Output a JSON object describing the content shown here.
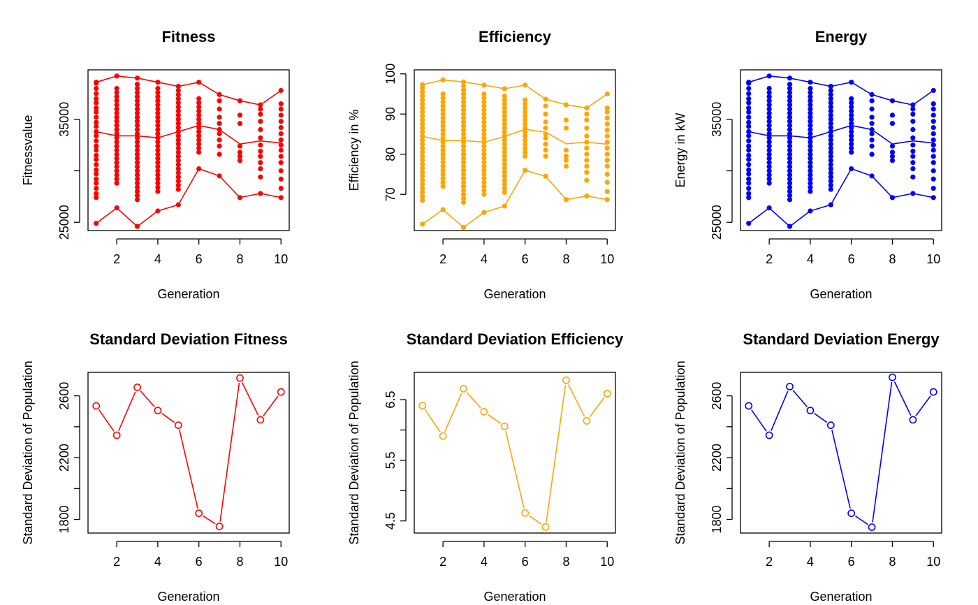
{
  "chart_data": [
    {
      "type": "scatter",
      "title": "Fitness",
      "xlabel": "Generation",
      "ylabel": "Fitnessvalue",
      "color": "#ff0000",
      "xlim": [
        0.6,
        10.4
      ],
      "ylim": [
        24200,
        39800
      ],
      "xticks": [
        2,
        4,
        6,
        8,
        10
      ],
      "yticks": [
        25000,
        30000,
        35000
      ],
      "ytick_labels": [
        "25000",
        "",
        "35000"
      ],
      "lines": {
        "max": [
          38600,
          39200,
          39000,
          38600,
          38200,
          38600,
          37400,
          36800,
          36400,
          37800
        ],
        "mean": [
          33800,
          33400,
          33400,
          33200,
          33800,
          34400,
          34000,
          32600,
          32900,
          32700
        ],
        "min": [
          24900,
          26400,
          24600,
          26100,
          26700,
          30200,
          29500,
          27400,
          27800,
          27400
        ]
      },
      "points": [
        {
          "x": 1,
          "y": [
            27400,
            27800,
            28300,
            28800,
            29200,
            29700,
            30100,
            30600,
            31100,
            31500,
            32000,
            32400,
            32900,
            33400,
            33800,
            34300,
            34700,
            35200,
            35700,
            36100,
            36600,
            37000,
            37500,
            38000,
            38500
          ]
        },
        {
          "x": 2,
          "y": [
            28800,
            29200,
            29600,
            30000,
            30400,
            30800,
            31200,
            31600,
            32000,
            32400,
            32800,
            33200,
            33600,
            34000,
            34400,
            34800,
            35200,
            35600,
            36000,
            36400,
            36800,
            37200,
            37600,
            38000
          ]
        },
        {
          "x": 3,
          "y": [
            27200,
            27600,
            28000,
            28400,
            28800,
            29200,
            29600,
            30000,
            30400,
            30800,
            31200,
            31600,
            32000,
            32400,
            32800,
            33200,
            33600,
            34000,
            34400,
            34800,
            35200,
            35600,
            36000,
            36400,
            36800,
            37200,
            37600,
            38000,
            38400
          ]
        },
        {
          "x": 4,
          "y": [
            28000,
            28400,
            28800,
            29200,
            29600,
            30000,
            30400,
            30800,
            31200,
            31600,
            32000,
            32400,
            32800,
            33200,
            33600,
            34000,
            34400,
            34800,
            35200,
            35600,
            36000,
            36400,
            36800,
            37200,
            37600,
            38000
          ]
        },
        {
          "x": 5,
          "y": [
            28200,
            28600,
            29000,
            29400,
            29800,
            30200,
            30600,
            31000,
            31400,
            31800,
            32200,
            32600,
            33000,
            33400,
            33800,
            34200,
            34600,
            35000,
            35400,
            35800,
            36200,
            36600,
            37000,
            37400,
            37800
          ]
        },
        {
          "x": 6,
          "y": [
            31800,
            32200,
            32600,
            33000,
            33400,
            33800,
            34200,
            34600,
            35000,
            35400,
            35800,
            36200,
            36600,
            37000
          ]
        },
        {
          "x": 7,
          "y": [
            31600,
            32400,
            33000,
            33600,
            34000,
            34600,
            35200,
            36000,
            36800
          ]
        },
        {
          "x": 8,
          "y": [
            31000,
            31400,
            31800,
            32400,
            34600,
            35400
          ]
        },
        {
          "x": 9,
          "y": [
            29400,
            30200,
            30800,
            31400,
            31900,
            32500,
            33200,
            34000,
            34800,
            35500,
            36000
          ]
        },
        {
          "x": 10,
          "y": [
            28300,
            29200,
            30000,
            30800,
            31400,
            32000,
            32500,
            33000,
            33600,
            34200,
            34800,
            35400,
            36000,
            36500
          ]
        }
      ]
    },
    {
      "type": "scatter",
      "title": "Efficiency",
      "xlabel": "Generation",
      "ylabel": "Efficiency in %",
      "color": "#ffa500",
      "xlim": [
        0.6,
        10.4
      ],
      "ylim": [
        61,
        101
      ],
      "xticks": [
        2,
        4,
        6,
        8,
        10
      ],
      "yticks": [
        70,
        80,
        90,
        100
      ],
      "ytick_labels": [
        "70",
        "80",
        "90",
        "100"
      ],
      "lines": {
        "max": [
          97.3,
          98.5,
          98.0,
          97.2,
          96.3,
          97.2,
          93.7,
          92.3,
          91.5,
          95.0
        ],
        "mean": [
          84.4,
          83.4,
          83.4,
          83.0,
          84.4,
          86.2,
          85.5,
          82.6,
          83.0,
          82.5
        ],
        "min": [
          62.6,
          66.2,
          61.8,
          65.5,
          67.1,
          76.0,
          74.5,
          68.7,
          69.6,
          68.7
        ]
      },
      "points": [
        {
          "x": 1,
          "y": [
            68.5,
            69.5,
            70.5,
            71.5,
            72.5,
            73.5,
            74.5,
            75.5,
            76.5,
            77.5,
            78.5,
            79.5,
            80.5,
            81.5,
            82.5,
            83.5,
            84.5,
            85.5,
            86.5,
            87.5,
            88.5,
            89.5,
            90.5,
            91.5,
            92.5,
            93.5,
            94.5,
            95.5,
            96.5
          ]
        },
        {
          "x": 2,
          "y": [
            72.0,
            73.0,
            74.0,
            75.0,
            76.0,
            77.0,
            78.0,
            79.0,
            80.0,
            81.0,
            82.0,
            83.0,
            84.0,
            85.0,
            86.0,
            87.0,
            88.0,
            89.0,
            90.0,
            91.0,
            92.0,
            93.0,
            94.0,
            95.0
          ]
        },
        {
          "x": 3,
          "y": [
            68.0,
            69.0,
            70.0,
            71.0,
            72.0,
            73.0,
            74.0,
            75.0,
            76.0,
            77.0,
            78.0,
            79.0,
            80.0,
            81.0,
            82.0,
            83.0,
            84.0,
            85.0,
            86.0,
            87.0,
            88.0,
            89.0,
            90.0,
            91.0,
            92.0,
            93.0,
            94.0,
            95.0,
            96.0,
            97.0
          ]
        },
        {
          "x": 4,
          "y": [
            70.0,
            71.0,
            72.0,
            73.0,
            74.0,
            75.0,
            76.0,
            77.0,
            78.0,
            79.0,
            80.0,
            81.0,
            82.0,
            83.0,
            84.0,
            85.0,
            86.0,
            87.0,
            88.0,
            89.0,
            90.0,
            91.0,
            92.0,
            93.0,
            94.0,
            95.0
          ]
        },
        {
          "x": 5,
          "y": [
            70.5,
            71.5,
            72.5,
            73.5,
            74.5,
            75.5,
            76.5,
            77.5,
            78.5,
            79.5,
            80.5,
            81.5,
            82.5,
            83.5,
            84.5,
            85.5,
            86.5,
            87.5,
            88.5,
            89.5,
            90.5,
            91.5,
            92.5,
            93.5,
            94.5
          ]
        },
        {
          "x": 6,
          "y": [
            79.5,
            80.5,
            81.5,
            82.5,
            83.5,
            84.5,
            85.5,
            86.5,
            87.5,
            88.5,
            89.5,
            90.5,
            91.5,
            92.5,
            93.5
          ]
        },
        {
          "x": 7,
          "y": [
            79.5,
            81.0,
            82.5,
            84.0,
            85.0,
            86.5,
            88.0,
            90.0,
            92.0
          ]
        },
        {
          "x": 8,
          "y": [
            77.0,
            78.5,
            79.5,
            81.0,
            86.5,
            88.5
          ]
        },
        {
          "x": 9,
          "y": [
            73.5,
            75.5,
            77.0,
            78.5,
            80.0,
            81.5,
            83.0,
            84.5,
            86.5,
            88.5,
            90.0
          ]
        },
        {
          "x": 10,
          "y": [
            70.7,
            73.0,
            75.0,
            77.0,
            78.5,
            80.0,
            81.5,
            83.0,
            84.5,
            86.0,
            87.5,
            89.0,
            90.5,
            91.5
          ]
        }
      ]
    },
    {
      "type": "scatter",
      "title": "Energy",
      "xlabel": "Generation",
      "ylabel": "Energy in kW",
      "color": "#0000ff",
      "xlim": [
        0.6,
        10.4
      ],
      "ylim": [
        24200,
        39800
      ],
      "xticks": [
        2,
        4,
        6,
        8,
        10
      ],
      "yticks": [
        25000,
        30000,
        35000
      ],
      "ytick_labels": [
        "25000",
        "",
        "35000"
      ],
      "lines": {
        "max": [
          38600,
          39200,
          39000,
          38600,
          38200,
          38600,
          37400,
          36800,
          36400,
          37800
        ],
        "mean": [
          33800,
          33400,
          33400,
          33200,
          33800,
          34400,
          34000,
          32600,
          32900,
          32700
        ],
        "min": [
          24900,
          26400,
          24600,
          26100,
          26700,
          30200,
          29500,
          27400,
          27800,
          27400
        ]
      },
      "points": [
        {
          "x": 1,
          "y": [
            27400,
            27800,
            28300,
            28800,
            29200,
            29700,
            30100,
            30600,
            31100,
            31500,
            32000,
            32400,
            32900,
            33400,
            33800,
            34300,
            34700,
            35200,
            35700,
            36100,
            36600,
            37000,
            37500,
            38000,
            38500
          ]
        },
        {
          "x": 2,
          "y": [
            28800,
            29200,
            29600,
            30000,
            30400,
            30800,
            31200,
            31600,
            32000,
            32400,
            32800,
            33200,
            33600,
            34000,
            34400,
            34800,
            35200,
            35600,
            36000,
            36400,
            36800,
            37200,
            37600,
            38000
          ]
        },
        {
          "x": 3,
          "y": [
            27200,
            27600,
            28000,
            28400,
            28800,
            29200,
            29600,
            30000,
            30400,
            30800,
            31200,
            31600,
            32000,
            32400,
            32800,
            33200,
            33600,
            34000,
            34400,
            34800,
            35200,
            35600,
            36000,
            36400,
            36800,
            37200,
            37600,
            38000,
            38400
          ]
        },
        {
          "x": 4,
          "y": [
            28000,
            28400,
            28800,
            29200,
            29600,
            30000,
            30400,
            30800,
            31200,
            31600,
            32000,
            32400,
            32800,
            33200,
            33600,
            34000,
            34400,
            34800,
            35200,
            35600,
            36000,
            36400,
            36800,
            37200,
            37600,
            38000
          ]
        },
        {
          "x": 5,
          "y": [
            28200,
            28600,
            29000,
            29400,
            29800,
            30200,
            30600,
            31000,
            31400,
            31800,
            32200,
            32600,
            33000,
            33400,
            33800,
            34200,
            34600,
            35000,
            35400,
            35800,
            36200,
            36600,
            37000,
            37400,
            37800
          ]
        },
        {
          "x": 6,
          "y": [
            31800,
            32200,
            32600,
            33000,
            33400,
            33800,
            34200,
            34600,
            35000,
            35400,
            35800,
            36200,
            36600,
            37000
          ]
        },
        {
          "x": 7,
          "y": [
            31600,
            32400,
            33000,
            33600,
            34000,
            34600,
            35200,
            36000,
            36800
          ]
        },
        {
          "x": 8,
          "y": [
            31000,
            31400,
            31800,
            32400,
            34600,
            35400
          ]
        },
        {
          "x": 9,
          "y": [
            29400,
            30200,
            30800,
            31400,
            31900,
            32500,
            33200,
            34000,
            34800,
            35500,
            36000
          ]
        },
        {
          "x": 10,
          "y": [
            28300,
            29200,
            30000,
            30800,
            31400,
            32000,
            32500,
            33000,
            33600,
            34200,
            34800,
            35400,
            36000,
            36500
          ]
        }
      ]
    },
    {
      "type": "line",
      "title": "Standard Deviation Fitness",
      "xlabel": "Generation",
      "ylabel": "Standard Deviation of Population",
      "color": "#ff0000",
      "xlim": [
        0.6,
        10.4
      ],
      "ylim": [
        1712,
        2752
      ],
      "xticks": [
        2,
        4,
        6,
        8,
        10
      ],
      "yticks": [
        1800,
        2000,
        2200,
        2400,
        2600
      ],
      "ytick_labels": [
        "1800",
        "",
        "2200",
        "",
        "2600"
      ],
      "x": [
        1,
        2,
        3,
        4,
        5,
        6,
        7,
        8,
        9,
        10
      ],
      "y": [
        2535,
        2345,
        2655,
        2505,
        2410,
        1840,
        1755,
        2715,
        2445,
        2625
      ]
    },
    {
      "type": "line",
      "title": "Standard Deviation Efficiency",
      "xlabel": "Generation",
      "ylabel": "Standard Deviation of Population",
      "color": "#ffa500",
      "xlim": [
        0.6,
        10.4
      ],
      "ylim": [
        4.3,
        6.95
      ],
      "xticks": [
        2,
        4,
        6,
        8,
        10
      ],
      "yticks": [
        4.5,
        5.0,
        5.5,
        6.0,
        6.5
      ],
      "ytick_labels": [
        "4.5",
        "",
        "5.5",
        "",
        "6.5"
      ],
      "x": [
        1,
        2,
        3,
        4,
        5,
        6,
        7,
        8,
        9,
        10
      ],
      "y": [
        6.4,
        5.9,
        6.68,
        6.3,
        6.06,
        4.63,
        4.4,
        6.82,
        6.15,
        6.6
      ]
    },
    {
      "type": "line",
      "title": "Standard Deviation Energy",
      "xlabel": "Generation",
      "ylabel": "Standard Deviation of Population",
      "color": "#0000ff",
      "xlim": [
        0.6,
        10.4
      ],
      "ylim": [
        1712,
        2752
      ],
      "xticks": [
        2,
        4,
        6,
        8,
        10
      ],
      "yticks": [
        1800,
        2000,
        2200,
        2400,
        2600
      ],
      "ytick_labels": [
        "1800",
        "",
        "2200",
        "",
        "2600"
      ],
      "x": [
        1,
        2,
        3,
        4,
        5,
        6,
        7,
        8,
        9,
        10
      ],
      "y": [
        2535,
        2345,
        2660,
        2505,
        2410,
        1840,
        1750,
        2720,
        2445,
        2625
      ]
    }
  ]
}
